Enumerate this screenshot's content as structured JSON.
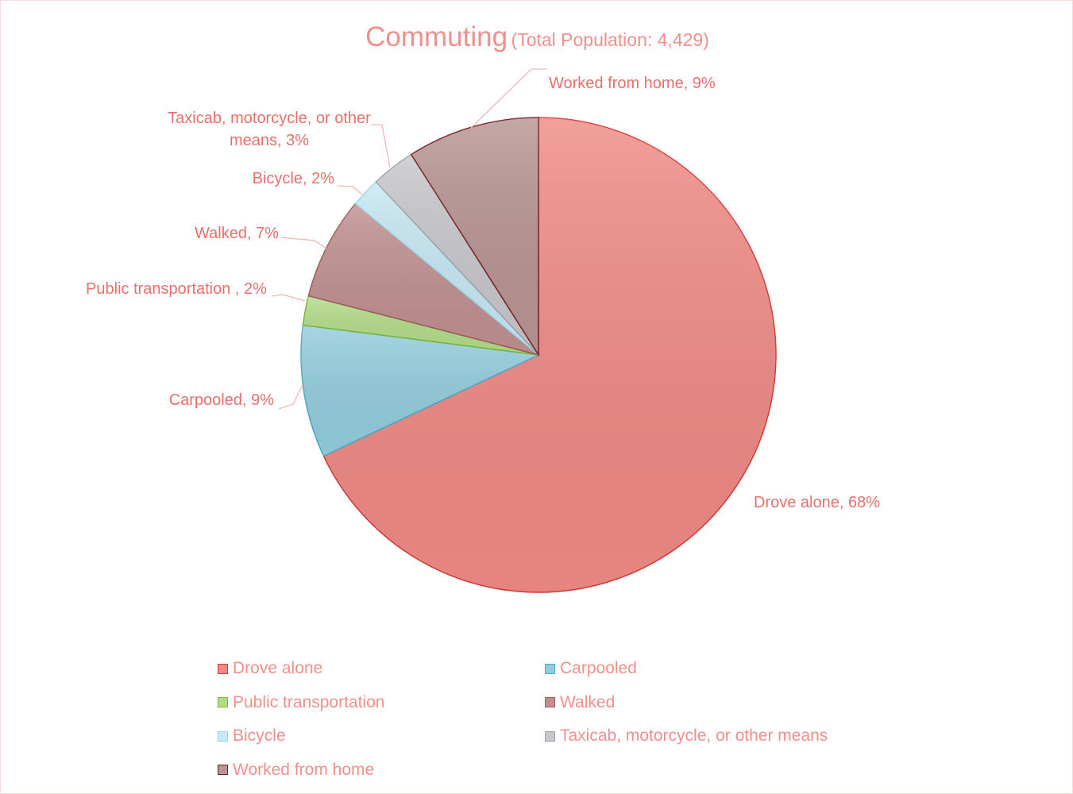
{
  "chart_data": {
    "type": "pie",
    "title": "Commuting",
    "subtitle": "(Total Population: 4,429)",
    "categories": [
      "Drove alone",
      "Carpooled",
      "Public transportation",
      "Walked",
      "Bicycle",
      "Taxicab, motorcycle, or other means",
      "Worked from home"
    ],
    "values": [
      68,
      9,
      2,
      7,
      2,
      3,
      9
    ],
    "value_labels": [
      "Drove alone, 68%",
      "Carpooled, 9%",
      "Public transportation , 2%",
      "Walked, 7%",
      "Bicycle, 2%",
      "Taxicab, motorcycle, or other means, 3%",
      "Worked from home, 9%"
    ],
    "colors": [
      "#f08a86",
      "#93cddd",
      "#b3dc8a",
      "#c09090",
      "#c6e8f4",
      "#c8c8cc",
      "#b89494"
    ],
    "legend": "bottom"
  }
}
